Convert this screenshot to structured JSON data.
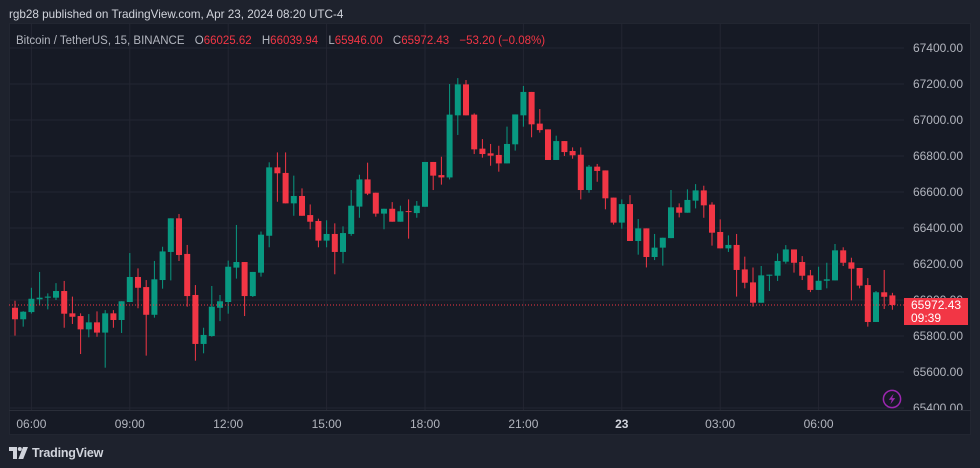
{
  "header": {
    "publish_text": "rgb28 published on TradingView.com, Apr 23, 2024 08:20 UTC-4"
  },
  "legend": {
    "symbol": "Bitcoin / TetherUS, 15, BINANCE",
    "open_label": "O",
    "open": "66025.62",
    "high_label": "H",
    "high": "66039.94",
    "low_label": "L",
    "low": "65946.00",
    "close_label": "C",
    "close": "65972.43",
    "change": "−53.20 (−0.08%)"
  },
  "price_scale": {
    "labels": [
      "67400.00",
      "67200.00",
      "67000.00",
      "66800.00",
      "66600.00",
      "66400.00",
      "66200.00",
      "66000.00",
      "65800.00",
      "65600.00",
      "65400.00"
    ],
    "current_price": "65972.43",
    "countdown": "09:39"
  },
  "time_scale": {
    "labels": [
      {
        "text": "06:00",
        "bar": 3
      },
      {
        "text": "09:00",
        "bar": 15
      },
      {
        "text": "12:00",
        "bar": 27
      },
      {
        "text": "15:00",
        "bar": 39
      },
      {
        "text": "18:00",
        "bar": 51
      },
      {
        "text": "21:00",
        "bar": 63
      },
      {
        "text": "23",
        "bar": 75,
        "bold": true
      },
      {
        "text": "03:00",
        "bar": 87
      },
      {
        "text": "06:00",
        "bar": 99
      }
    ]
  },
  "footer": {
    "brand": "TradingView"
  },
  "icons": {
    "alert": "lightning-icon",
    "logo": "tradingview-logo-icon"
  },
  "colors": {
    "up": "#089981",
    "down": "#f23645",
    "background": "#161a25",
    "frame": "#1e222d",
    "grid": "#232632",
    "text": "#b2b5be",
    "alert_icon": "#9c27b0"
  },
  "chart_data": {
    "type": "candlestick",
    "title": "Bitcoin / TetherUS, 15, BINANCE",
    "interval_minutes": 15,
    "xlabel": "",
    "ylabel": "",
    "ylim": [
      65389,
      67539
    ],
    "grid": true,
    "legend_position": "top-left",
    "last": {
      "open": 66025.62,
      "high": 66039.94,
      "low": 65946.0,
      "close": 65972.43,
      "change": -53.2,
      "change_pct": -0.08
    },
    "columns": [
      "time",
      "open",
      "high",
      "low",
      "close"
    ],
    "candles": [
      [
        "05:30",
        65957,
        65996,
        65802,
        65893
      ],
      [
        "05:45",
        65893,
        65938,
        65852,
        65935
      ],
      [
        "06:00",
        65933,
        66068,
        65925,
        66007
      ],
      [
        "06:15",
        66004,
        66156,
        65970,
        66013
      ],
      [
        "06:30",
        66013,
        66037,
        65948,
        66019
      ],
      [
        "06:45",
        66013,
        66094,
        66000,
        66050
      ],
      [
        "07:00",
        66050,
        66106,
        65846,
        65924
      ],
      [
        "07:15",
        65926,
        66019,
        65867,
        65907
      ],
      [
        "07:30",
        65911,
        65926,
        65700,
        65837
      ],
      [
        "07:45",
        65837,
        65922,
        65793,
        65876
      ],
      [
        "08:00",
        65876,
        65937,
        65796,
        65819
      ],
      [
        "08:15",
        65819,
        65944,
        65624,
        65926
      ],
      [
        "08:30",
        65926,
        65944,
        65846,
        65889
      ],
      [
        "08:45",
        65889,
        65993,
        65817,
        65993
      ],
      [
        "09:00",
        65989,
        66261,
        65989,
        66128
      ],
      [
        "09:15",
        66128,
        66176,
        65954,
        66068
      ],
      [
        "09:30",
        66072,
        66111,
        65691,
        65918
      ],
      [
        "09:45",
        65918,
        66217,
        65902,
        66115
      ],
      [
        "10:00",
        66111,
        66296,
        66063,
        66270
      ],
      [
        "10:15",
        66267,
        66454,
        66109,
        66454
      ],
      [
        "10:30",
        66454,
        66478,
        66217,
        66250
      ],
      [
        "10:45",
        66256,
        66306,
        65963,
        66022
      ],
      [
        "11:00",
        66028,
        66083,
        65663,
        65756
      ],
      [
        "11:15",
        65756,
        65846,
        65704,
        65806
      ],
      [
        "11:30",
        65800,
        66078,
        65796,
        65963
      ],
      [
        "11:45",
        65957,
        66028,
        65883,
        65993
      ],
      [
        "12:00",
        65989,
        66219,
        65924,
        66185
      ],
      [
        "12:15",
        66180,
        66417,
        66119,
        66211
      ],
      [
        "12:30",
        66211,
        66211,
        65911,
        66022
      ],
      [
        "12:45",
        66022,
        66156,
        66017,
        66156
      ],
      [
        "13:00",
        66152,
        66381,
        66130,
        66363
      ],
      [
        "13:15",
        66357,
        66765,
        66293,
        66737
      ],
      [
        "13:30",
        66737,
        66820,
        66546,
        66704
      ],
      [
        "13:45",
        66706,
        66820,
        66537,
        66537
      ],
      [
        "14:00",
        66537,
        66691,
        66468,
        66578
      ],
      [
        "14:15",
        66578,
        66620,
        66468,
        66468
      ],
      [
        "14:30",
        66472,
        66531,
        66393,
        66435
      ],
      [
        "14:45",
        66439,
        66452,
        66293,
        66330
      ],
      [
        "15:00",
        66330,
        66443,
        66293,
        66367
      ],
      [
        "15:15",
        66367,
        66426,
        66143,
        66267
      ],
      [
        "15:30",
        66267,
        66409,
        66204,
        66372
      ],
      [
        "15:45",
        66367,
        66611,
        66357,
        66524
      ],
      [
        "16:00",
        66519,
        66696,
        66457,
        66670
      ],
      [
        "16:15",
        66670,
        66763,
        66583,
        66591
      ],
      [
        "16:30",
        66596,
        66596,
        66463,
        66480
      ],
      [
        "16:45",
        66480,
        66507,
        66393,
        66507
      ],
      [
        "17:00",
        66507,
        66544,
        66435,
        66435
      ],
      [
        "17:15",
        66435,
        66524,
        66435,
        66493
      ],
      [
        "17:30",
        66494,
        66559,
        66341,
        66489
      ],
      [
        "17:45",
        66483,
        66550,
        66457,
        66524
      ],
      [
        "18:00",
        66518,
        66767,
        66518,
        66767
      ],
      [
        "18:15",
        66767,
        66767,
        66611,
        66691
      ],
      [
        "18:30",
        66694,
        66796,
        66641,
        66681
      ],
      [
        "18:45",
        66681,
        67200,
        66670,
        67030
      ],
      [
        "19:00",
        67026,
        67233,
        66917,
        67198
      ],
      [
        "19:15",
        67198,
        67222,
        67026,
        67026
      ],
      [
        "19:30",
        67030,
        67037,
        66811,
        66837
      ],
      [
        "19:45",
        66841,
        66894,
        66791,
        66811
      ],
      [
        "20:00",
        66815,
        66867,
        66746,
        66802
      ],
      [
        "20:15",
        66806,
        66857,
        66713,
        66759
      ],
      [
        "20:30",
        66759,
        66963,
        66759,
        66867
      ],
      [
        "20:45",
        66865,
        67031,
        66830,
        67031
      ],
      [
        "21:00",
        67026,
        67189,
        66963,
        67156
      ],
      [
        "21:15",
        67156,
        67156,
        66904,
        66976
      ],
      [
        "21:30",
        66980,
        67061,
        66930,
        66944
      ],
      [
        "21:45",
        66948,
        66948,
        66778,
        66778
      ],
      [
        "22:00",
        66778,
        66913,
        66778,
        66883
      ],
      [
        "22:15",
        66883,
        66883,
        66800,
        66822
      ],
      [
        "22:30",
        66828,
        66848,
        66785,
        66804
      ],
      [
        "22:45",
        66807,
        66848,
        66559,
        66611
      ],
      [
        "23:00",
        66611,
        66750,
        66596,
        66741
      ],
      [
        "23:15",
        66741,
        66756,
        66657,
        66717
      ],
      [
        "23:30",
        66720,
        66720,
        66504,
        66565
      ],
      [
        "23:45",
        66569,
        66569,
        66419,
        66430
      ],
      [
        "00:00",
        66430,
        66559,
        66396,
        66533
      ],
      [
        "00:15",
        66533,
        66583,
        66328,
        66328
      ],
      [
        "00:30",
        66328,
        66450,
        66252,
        66398
      ],
      [
        "00:45",
        66398,
        66398,
        66181,
        66239
      ],
      [
        "01:00",
        66239,
        66367,
        66222,
        66291
      ],
      [
        "01:15",
        66291,
        66346,
        66191,
        66346
      ],
      [
        "01:30",
        66344,
        66611,
        66344,
        66515
      ],
      [
        "01:45",
        66515,
        66537,
        66459,
        66485
      ],
      [
        "02:00",
        66485,
        66615,
        66485,
        66556
      ],
      [
        "02:15",
        66552,
        66644,
        66509,
        66609
      ],
      [
        "02:30",
        66609,
        66635,
        66457,
        66526
      ],
      [
        "02:45",
        66530,
        66543,
        66302,
        66374
      ],
      [
        "03:00",
        66378,
        66448,
        66287,
        66287
      ],
      [
        "03:15",
        66287,
        66359,
        66267,
        66306
      ],
      [
        "03:30",
        66306,
        66367,
        66019,
        66167
      ],
      [
        "03:45",
        66170,
        66241,
        66065,
        66096
      ],
      [
        "04:00",
        66098,
        66181,
        65963,
        65985
      ],
      [
        "04:15",
        65985,
        66189,
        65985,
        66137
      ],
      [
        "04:30",
        66135,
        66141,
        66050,
        66141
      ],
      [
        "04:45",
        66135,
        66259,
        66106,
        66217
      ],
      [
        "05:00",
        66213,
        66305,
        66202,
        66281
      ],
      [
        "05:15",
        66281,
        66281,
        66152,
        66207
      ],
      [
        "05:30",
        66211,
        66244,
        66111,
        66135
      ],
      [
        "05:45",
        66137,
        66167,
        66044,
        66056
      ],
      [
        "06:00",
        66056,
        66185,
        66056,
        66107
      ],
      [
        "06:15",
        66107,
        66207,
        66065,
        66115
      ],
      [
        "06:30",
        66109,
        66311,
        66109,
        66276
      ],
      [
        "06:45",
        66276,
        66293,
        66189,
        66207
      ],
      [
        "07:00",
        66209,
        66235,
        65998,
        66174
      ],
      [
        "07:15",
        66178,
        66178,
        66065,
        66080
      ],
      [
        "07:30",
        66083,
        66122,
        65852,
        65878
      ],
      [
        "07:45",
        65878,
        66050,
        65878,
        66043
      ],
      [
        "08:00",
        66043,
        66167,
        65950,
        66018
      ],
      [
        "08:15",
        66025.62,
        66039.94,
        65946.0,
        65972.43
      ]
    ]
  }
}
